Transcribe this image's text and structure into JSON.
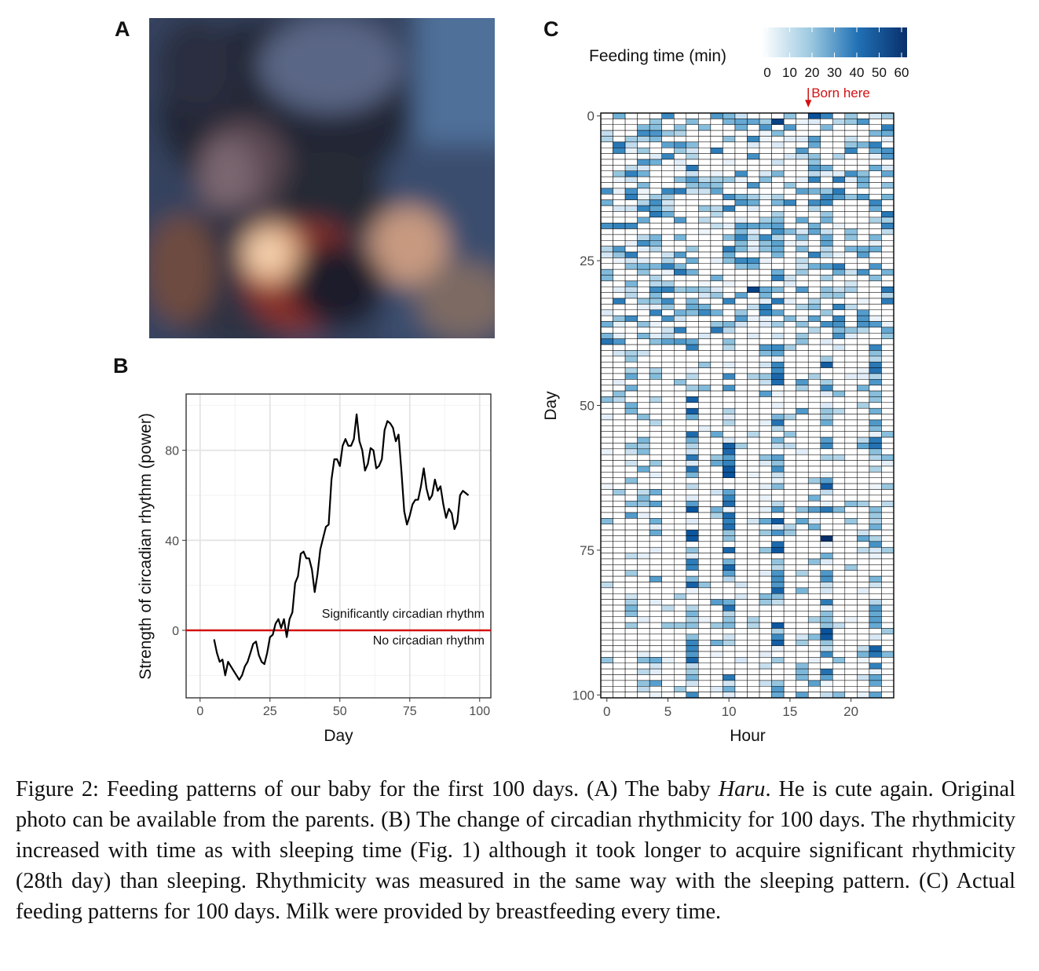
{
  "panels": {
    "a": {
      "letter": "A"
    },
    "b": {
      "letter": "B"
    },
    "c": {
      "letter": "C"
    }
  },
  "photo": {
    "description": "blurred baby photo"
  },
  "chart_data": [
    {
      "type": "line",
      "panel": "B",
      "xlabel": "Day",
      "ylabel": "Strength of circadian rhythm (power)",
      "xlim": [
        -5,
        104
      ],
      "ylim": [
        -30,
        105
      ],
      "xticks": [
        0,
        25,
        50,
        75,
        100
      ],
      "yticks": [
        0,
        40,
        80
      ],
      "grid": true,
      "series": [
        {
          "x": [
            5,
            6,
            7,
            8,
            9,
            10,
            11,
            12,
            13,
            14,
            15,
            16,
            17,
            18,
            19,
            20,
            21,
            22,
            23,
            24,
            25,
            26,
            27,
            28,
            29,
            30,
            31,
            32,
            33,
            34,
            35,
            36,
            37,
            38,
            39,
            40,
            41,
            42,
            43,
            44,
            45,
            46,
            47,
            48,
            49,
            50,
            51,
            52,
            53,
            54,
            55,
            56,
            57,
            58,
            59,
            60,
            61,
            62,
            63,
            64,
            65,
            66,
            67,
            68,
            69,
            70,
            71,
            72,
            73,
            74,
            75,
            76,
            77,
            78,
            79,
            80,
            81,
            82,
            83,
            84,
            85,
            86,
            87,
            88,
            89,
            90,
            91,
            92,
            93,
            94,
            95,
            96
          ],
          "y": [
            -4,
            -10,
            -14,
            -13,
            -20,
            -14,
            -16,
            -18,
            -20,
            -22,
            -20,
            -16,
            -14,
            -10,
            -6,
            -5,
            -11,
            -14,
            -15,
            -10,
            -3,
            -2,
            3,
            5,
            1,
            5,
            -3,
            5,
            8,
            21,
            24,
            34,
            35,
            32,
            32,
            27,
            17,
            25,
            36,
            41,
            46,
            47,
            67,
            76,
            76,
            73,
            82,
            85,
            82,
            82,
            85,
            96,
            84,
            80,
            71,
            74,
            81,
            80,
            72,
            73,
            76,
            89,
            93,
            92,
            90,
            84,
            87,
            71,
            53,
            47,
            51,
            56,
            58,
            58,
            64,
            72,
            63,
            58,
            60,
            67,
            62,
            64,
            56,
            50,
            54,
            52,
            45,
            48,
            60,
            62,
            61,
            60
          ],
          "color": "#000000"
        }
      ],
      "threshold": {
        "value": 0,
        "color": "#d31111"
      },
      "annotations": [
        "Significantly circadian rhythm",
        "No circadian rhythm"
      ]
    },
    {
      "type": "heatmap",
      "panel": "C",
      "xlabel": "Hour",
      "ylabel": "Day",
      "xticks": [
        0,
        5,
        10,
        15,
        20
      ],
      "yticks": [
        0,
        25,
        50,
        75,
        100
      ],
      "hours": 24,
      "days": 101,
      "colorbar": {
        "title": "Feeding time (min)",
        "ticks": [
          0,
          10,
          20,
          30,
          40,
          50,
          60
        ],
        "low_color": "#ffffff",
        "high_color": "#08306b"
      },
      "annotation": {
        "text": "Born here",
        "hour": 16.5,
        "color": "#d31111"
      },
      "cells_note": "grid of feeding minutes per hour for each day; values generated approximate pattern"
    }
  ],
  "caption": {
    "prefix": "Figure 2: Feeding patterns of our baby for the first 100 days. (A) The baby ",
    "name": "Haru",
    "suffix": ". He is cute again. Original photo can be available from the parents. (B) The change of circadian rhythmicity for 100 days. The rhythmicity increased with time as with sleeping time (Fig. 1) although it took longer to acquire significant rhythmicity (28th day) than sleeping. Rhythmicity was measured in the same way with the sleeping pattern. (C) Actual feeding patterns for 100 days. Milk were provided by breastfeeding every time."
  }
}
